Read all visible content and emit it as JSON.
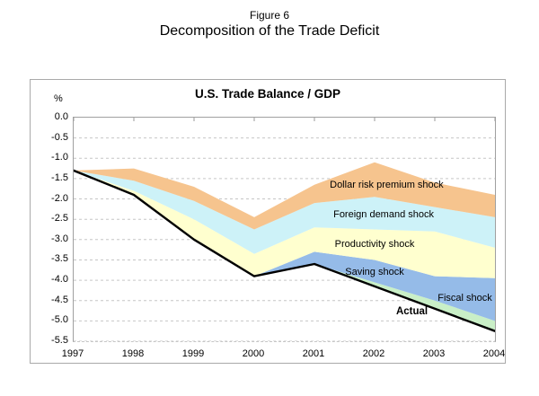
{
  "figure": {
    "caption": "Figure 6",
    "title": "Decomposition of the Trade Deficit"
  },
  "chart": {
    "title": "U.S. Trade Balance / GDP",
    "y_unit_label": "%"
  },
  "chart_data": {
    "type": "area",
    "stacked": true,
    "title": "U.S. Trade Balance / GDP",
    "xlabel": "",
    "ylabel": "%",
    "ylim": [
      -5.5,
      0.0
    ],
    "grid": "horizontal-dashed",
    "legend": "in-plot text annotations",
    "x": [
      1997,
      1998,
      1999,
      2000,
      2001,
      2002,
      2003,
      2004
    ],
    "x_tick_labels": [
      "1997",
      "1998",
      "1999",
      "2000",
      "2001",
      "2002",
      "2003",
      "2004"
    ],
    "y_ticks": [
      0.0,
      -0.5,
      -1.0,
      -1.5,
      -2.0,
      -2.5,
      -3.0,
      -3.5,
      -4.0,
      -4.5,
      -5.0,
      -5.5
    ],
    "y_tick_labels": [
      "0.0",
      "-0.5",
      "-1.0",
      "-1.5",
      "-2.0",
      "-2.5",
      "-3.0",
      "-3.5",
      "-4.0",
      "-4.5",
      "-5.0",
      "-5.5"
    ],
    "actual": {
      "name": "Actual",
      "color": "#000000",
      "values": [
        -1.3,
        -1.9,
        -3.0,
        -3.9,
        -3.6,
        -4.15,
        -4.7,
        -5.25
      ]
    },
    "series_note": "Bands stack upward from the Actual line; upper_boundary is the cumulative top edge of each band in % of GDP.",
    "series": [
      {
        "name": "Fiscal shock",
        "color": "#c9efc7",
        "upper_boundary": [
          -1.3,
          -1.9,
          -3.0,
          -3.9,
          -3.6,
          -4.05,
          -4.5,
          -5.0
        ]
      },
      {
        "name": "Saving shock",
        "color": "#95bbe8",
        "upper_boundary": [
          -1.3,
          -1.9,
          -3.0,
          -3.9,
          -3.3,
          -3.5,
          -3.9,
          -3.95
        ]
      },
      {
        "name": "Productivity shock",
        "color": "#ffffcf",
        "upper_boundary": [
          -1.3,
          -1.8,
          -2.5,
          -3.35,
          -2.7,
          -2.75,
          -2.8,
          -3.2
        ]
      },
      {
        "name": "Foreign demand shock",
        "color": "#cdf2f8",
        "upper_boundary": [
          -1.3,
          -1.55,
          -2.05,
          -2.75,
          -2.1,
          -1.95,
          -2.2,
          -2.45
        ]
      },
      {
        "name": "Dollar risk premium shock",
        "color": "#f6c48e",
        "upper_boundary": [
          -1.3,
          -1.25,
          -1.7,
          -2.45,
          -1.65,
          -1.1,
          -1.6,
          -1.9
        ]
      }
    ],
    "annotations": [
      {
        "text": "Dollar risk premium shock",
        "year": 2002.2,
        "value": -1.66,
        "bold": false
      },
      {
        "text": "Foreign demand shock",
        "year": 2002.15,
        "value": -2.38,
        "bold": false
      },
      {
        "text": "Productivity shock",
        "year": 2002.0,
        "value": -3.11,
        "bold": false
      },
      {
        "text": "Saving shock",
        "year": 2002.0,
        "value": -3.81,
        "bold": false
      },
      {
        "text": "Fiscal shock",
        "year": 2003.5,
        "value": -4.43,
        "bold": false
      },
      {
        "text": "Actual",
        "year": 2002.62,
        "value": -4.78,
        "bold": true
      }
    ],
    "axis_colors": {
      "border": "#a0a0a0",
      "gridline": "#c6c6c6",
      "tick": "#999999"
    }
  }
}
